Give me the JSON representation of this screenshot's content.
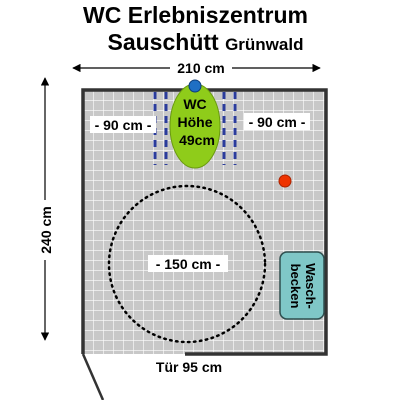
{
  "title": {
    "line1": "WC Erlebniszentrum",
    "line2": "Sauschütt",
    "line2_small": "Grünwald"
  },
  "dimensions": {
    "width": "210 cm",
    "height": "240 cm",
    "left_gap": "- 90 cm -",
    "right_gap": "- 90 cm -",
    "turning_circle": "- 150 cm -",
    "door": "Tür 95 cm"
  },
  "wc": {
    "line1": "WC",
    "line2": "Höhe",
    "line3": "49cm"
  },
  "sink": {
    "line1": "Wasch-",
    "line2": "becken"
  },
  "colors": {
    "grid_bg": "#c8c8c8",
    "grid_line": "#ffffff",
    "wall": "#333333",
    "wc_fill": "#8fcc1a",
    "wc_marker": "#1f6fc4",
    "emergency_dot": "#ee3300",
    "sink_fill": "#7fc7c7",
    "dash_blue": "#2b3c9c"
  }
}
